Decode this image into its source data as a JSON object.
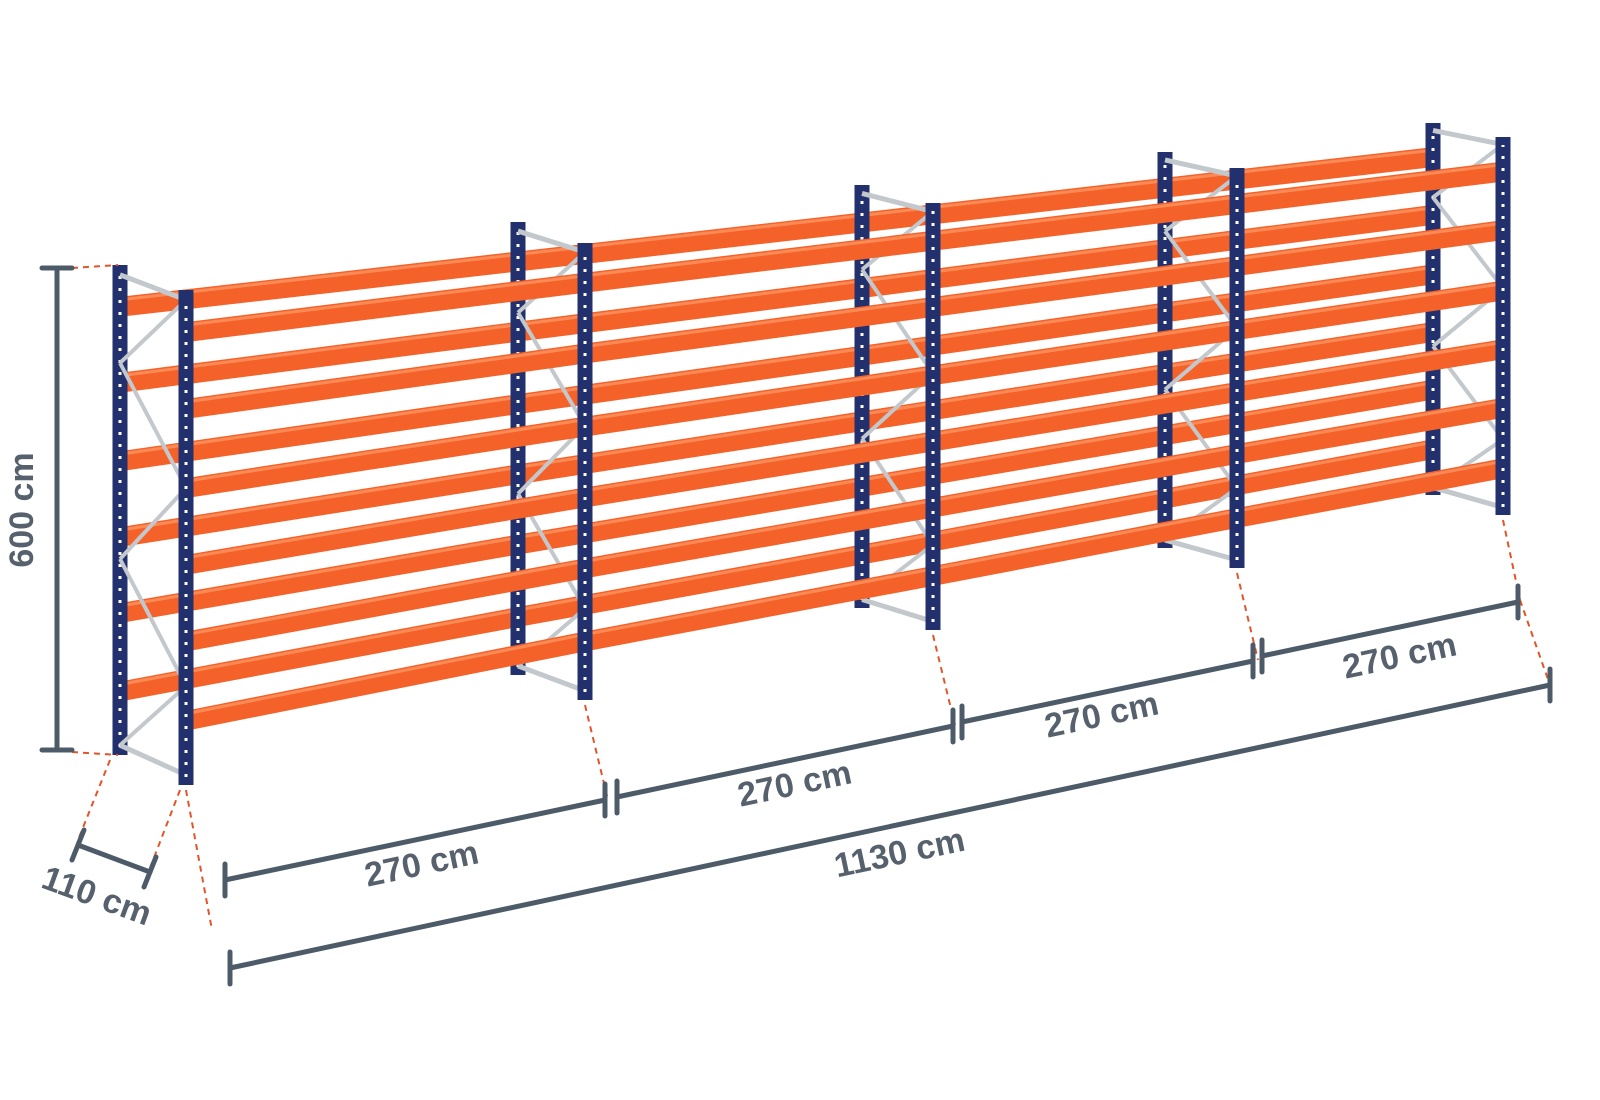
{
  "dimensions": {
    "height": "600 cm",
    "depth": "110 cm",
    "bays": [
      "270 cm",
      "270 cm",
      "270 cm",
      "270 cm"
    ],
    "total": "1130 cm"
  }
}
